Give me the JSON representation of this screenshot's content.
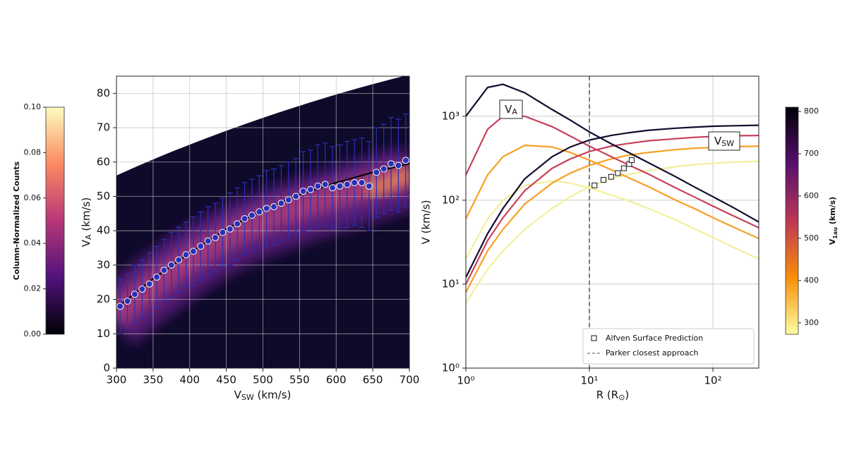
{
  "chart_data": [
    {
      "type": "scatter",
      "xlabel": {
        "base": "V",
        "sub": "SW",
        "tail": " (km/s)"
      },
      "ylabel": {
        "base": "V",
        "sub": "A",
        "tail": " (km/s)"
      },
      "xlim": [
        300,
        700
      ],
      "ylim": [
        0,
        85
      ],
      "xticks": [
        300,
        350,
        400,
        450,
        500,
        550,
        600,
        650,
        700
      ],
      "yticks": [
        0,
        10,
        20,
        30,
        40,
        50,
        60,
        70,
        80
      ],
      "grid": true,
      "x": [
        305,
        315,
        325,
        335,
        345,
        355,
        365,
        375,
        385,
        395,
        405,
        415,
        425,
        435,
        445,
        455,
        465,
        475,
        485,
        495,
        505,
        515,
        525,
        535,
        545,
        555,
        565,
        575,
        585,
        595,
        605,
        615,
        625,
        635,
        645,
        655,
        665,
        675,
        685,
        695
      ],
      "series": [
        {
          "color": "#2a30b8",
          "values": [
            18,
            19.5,
            21.5,
            23,
            24.5,
            26.5,
            28.5,
            30,
            31.5,
            33,
            34,
            35.5,
            37,
            38,
            39.5,
            40.5,
            42,
            43.5,
            44.5,
            45.5,
            46.5,
            47,
            48,
            49,
            50,
            51.5,
            52,
            53,
            53.5,
            52.5,
            53,
            53.5,
            54,
            54,
            53,
            57,
            58,
            59.5,
            59,
            60.5
          ],
          "errors": [
            8,
            8,
            8.5,
            8.5,
            9,
            9,
            9,
            9.5,
            9.5,
            9.5,
            10,
            10,
            10,
            10,
            10,
            10.5,
            10.5,
            10.5,
            10.5,
            10.5,
            11,
            11,
            11,
            11,
            11,
            11.5,
            11.5,
            12,
            12,
            12,
            12,
            12.5,
            12.5,
            13,
            13,
            13,
            13,
            13.5,
            13.5,
            13.5
          ]
        }
      ],
      "fit": {
        "color": "#000000",
        "x": [
          300,
          350,
          400,
          450,
          500,
          550,
          600,
          650,
          700
        ],
        "values": [
          17.5,
          26,
          33.5,
          40.5,
          46,
          50.5,
          54,
          57,
          59.5
        ]
      },
      "colorbar": {
        "label": "Column-Normalized Counts",
        "clim": [
          0,
          0.1
        ],
        "ticks": [
          {
            "value": 0,
            "label": "0.00"
          },
          {
            "value": 0.02,
            "label": "0.02"
          },
          {
            "value": 0.04,
            "label": "0.04"
          },
          {
            "value": 0.06,
            "label": "0.06"
          },
          {
            "value": 0.08,
            "label": "0.08"
          },
          {
            "value": 0.1,
            "label": "0.10"
          }
        ]
      }
    },
    {
      "type": "line",
      "log_x": true,
      "log_y": true,
      "xlabel": {
        "base": "R (R",
        "sub": "⊙",
        "tail": ")"
      },
      "ylabel": "V (km/s)",
      "xlim": [
        1,
        235
      ],
      "ylim": [
        1,
        3000
      ],
      "xticks": [
        {
          "value": 1,
          "label": "10⁰"
        },
        {
          "value": 10,
          "label": "10¹"
        },
        {
          "value": 100,
          "label": "10²"
        }
      ],
      "yticks": [
        {
          "value": 1,
          "label": "10⁰"
        },
        {
          "value": 10,
          "label": "10¹"
        },
        {
          "value": 100,
          "label": "10²"
        },
        {
          "value": 1000,
          "label": "10³"
        }
      ],
      "grid": true,
      "annotations": [
        {
          "base": "V",
          "sub": "A"
        },
        {
          "base": "V",
          "sub": "SW"
        }
      ],
      "x": [
        1,
        1.5,
        2,
        3,
        5,
        7,
        10,
        15,
        20,
        30,
        50,
        70,
        100,
        150,
        235
      ],
      "series": [
        {
          "color": "#f3ef9b",
          "values": [
            20,
            60,
            100,
            150,
            170,
            160,
            140,
            115,
            100,
            80,
            58,
            46,
            36,
            27,
            20
          ]
        },
        {
          "color": "#f3ef9b",
          "values": [
            6,
            15,
            25,
            45,
            80,
            110,
            145,
            180,
            200,
            225,
            250,
            265,
            275,
            285,
            290
          ]
        },
        {
          "color": "#f8a024",
          "values": [
            60,
            200,
            330,
            450,
            430,
            370,
            300,
            230,
            190,
            145,
            100,
            80,
            62,
            47,
            35
          ]
        },
        {
          "color": "#f8a024",
          "values": [
            8,
            25,
            45,
            90,
            160,
            210,
            260,
            310,
            340,
            370,
            400,
            415,
            425,
            435,
            440
          ]
        },
        {
          "color": "#c8405a",
          "values": [
            200,
            700,
            1000,
            1000,
            750,
            580,
            440,
            330,
            270,
            205,
            140,
            110,
            85,
            64,
            47
          ]
        },
        {
          "color": "#c8405a",
          "values": [
            10,
            33,
            62,
            130,
            240,
            310,
            380,
            440,
            470,
            510,
            540,
            560,
            575,
            585,
            590
          ]
        },
        {
          "color": "#140b2e",
          "values": [
            1000,
            2200,
            2400,
            1900,
            1200,
            900,
            650,
            470,
            380,
            280,
            190,
            145,
            110,
            80,
            55
          ]
        },
        {
          "color": "#140b2e",
          "values": [
            12,
            40,
            80,
            180,
            330,
            430,
            520,
            590,
            630,
            680,
            720,
            740,
            760,
            770,
            780
          ]
        }
      ],
      "markers": {
        "name": "Alfven Surface Prediction",
        "x": [
          11,
          13,
          15,
          17,
          19,
          21,
          22
        ],
        "values": [
          150,
          175,
          190,
          210,
          240,
          270,
          300
        ]
      },
      "vline": {
        "name": "Parker closest approach",
        "x": 10
      },
      "legend": "lower right",
      "colorbar": {
        "label": {
          "base": "V",
          "sub": "1au",
          "tail": " (km/s)"
        },
        "clim": [
          273,
          810
        ],
        "ticks": [
          300,
          400,
          500,
          600,
          700,
          800
        ]
      }
    }
  ]
}
